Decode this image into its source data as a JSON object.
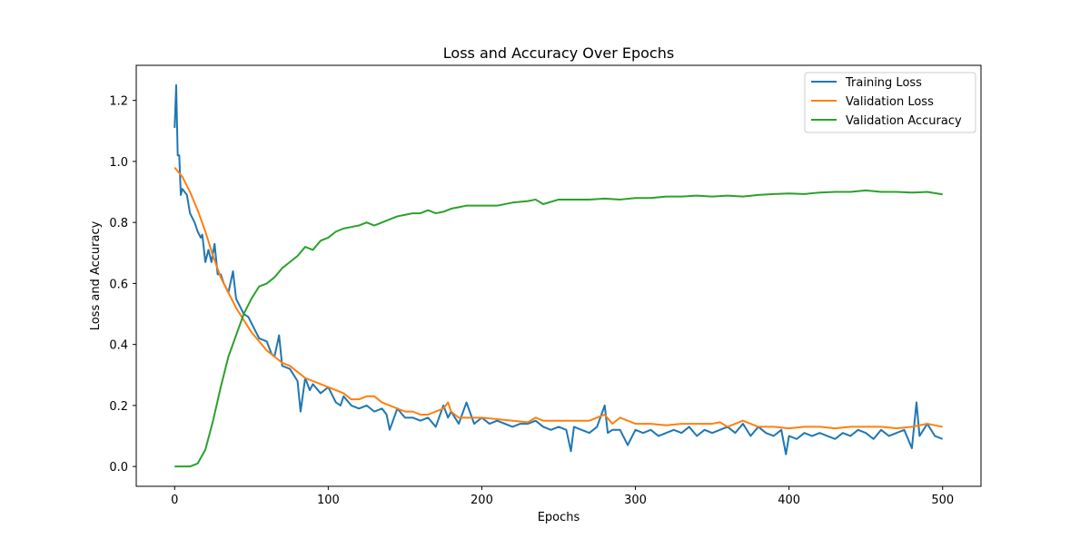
{
  "chart_data": {
    "type": "line",
    "title": "Loss and Accuracy Over Epochs",
    "xlabel": "Epochs",
    "ylabel": "Loss and Accuracy",
    "xlim": [
      -25,
      525
    ],
    "ylim": [
      -0.065,
      1.315
    ],
    "x_ticks": [
      0,
      100,
      200,
      300,
      400,
      500
    ],
    "y_ticks": [
      0.0,
      0.2,
      0.4,
      0.6,
      0.8,
      1.0,
      1.2
    ],
    "x_tick_labels": [
      "0",
      "100",
      "200",
      "300",
      "400",
      "500"
    ],
    "y_tick_labels": [
      "0.0",
      "0.2",
      "0.4",
      "0.6",
      "0.8",
      "1.0",
      "1.2"
    ],
    "grid": false,
    "legend_position": "top-right",
    "series": [
      {
        "name": "Training Loss",
        "color": "#1f77b4",
        "x": [
          0,
          1,
          2,
          3,
          4,
          5,
          8,
          10,
          13,
          15,
          17,
          18,
          20,
          22,
          24,
          26,
          28,
          30,
          32,
          35,
          38,
          40,
          42,
          45,
          48,
          50,
          55,
          60,
          63,
          65,
          68,
          70,
          75,
          80,
          82,
          85,
          88,
          90,
          95,
          100,
          105,
          108,
          110,
          115,
          120,
          125,
          130,
          135,
          138,
          140,
          145,
          150,
          155,
          160,
          165,
          170,
          175,
          178,
          180,
          185,
          190,
          195,
          200,
          205,
          210,
          215,
          220,
          225,
          230,
          235,
          240,
          245,
          250,
          255,
          258,
          260,
          265,
          270,
          275,
          280,
          282,
          285,
          290,
          295,
          300,
          305,
          310,
          315,
          320,
          325,
          330,
          335,
          340,
          345,
          350,
          355,
          360,
          365,
          370,
          375,
          380,
          385,
          390,
          395,
          398,
          400,
          405,
          410,
          415,
          420,
          425,
          430,
          435,
          440,
          445,
          450,
          455,
          460,
          465,
          470,
          475,
          480,
          483,
          485,
          490,
          495,
          500
        ],
        "values": [
          1.11,
          1.25,
          1.02,
          1.02,
          0.89,
          0.91,
          0.89,
          0.83,
          0.8,
          0.77,
          0.75,
          0.76,
          0.67,
          0.71,
          0.67,
          0.73,
          0.63,
          0.63,
          0.6,
          0.57,
          0.64,
          0.55,
          0.53,
          0.5,
          0.49,
          0.47,
          0.42,
          0.41,
          0.37,
          0.36,
          0.43,
          0.33,
          0.32,
          0.28,
          0.18,
          0.29,
          0.25,
          0.27,
          0.24,
          0.26,
          0.21,
          0.2,
          0.23,
          0.2,
          0.19,
          0.2,
          0.18,
          0.19,
          0.17,
          0.12,
          0.19,
          0.16,
          0.16,
          0.15,
          0.16,
          0.13,
          0.2,
          0.16,
          0.18,
          0.14,
          0.21,
          0.14,
          0.16,
          0.14,
          0.15,
          0.14,
          0.13,
          0.14,
          0.14,
          0.15,
          0.13,
          0.12,
          0.13,
          0.12,
          0.05,
          0.13,
          0.12,
          0.11,
          0.13,
          0.2,
          0.11,
          0.12,
          0.12,
          0.07,
          0.12,
          0.11,
          0.12,
          0.1,
          0.11,
          0.12,
          0.11,
          0.13,
          0.1,
          0.12,
          0.11,
          0.12,
          0.13,
          0.11,
          0.14,
          0.1,
          0.13,
          0.11,
          0.1,
          0.12,
          0.04,
          0.1,
          0.09,
          0.11,
          0.1,
          0.11,
          0.1,
          0.09,
          0.11,
          0.1,
          0.12,
          0.11,
          0.09,
          0.12,
          0.1,
          0.11,
          0.12,
          0.06,
          0.21,
          0.1,
          0.14,
          0.1,
          0.09
        ]
      },
      {
        "name": "Validation Loss",
        "color": "#ff7f0e",
        "x": [
          0,
          5,
          10,
          15,
          20,
          25,
          30,
          35,
          40,
          45,
          50,
          55,
          60,
          65,
          70,
          75,
          80,
          85,
          90,
          95,
          100,
          105,
          110,
          115,
          120,
          125,
          130,
          135,
          140,
          145,
          150,
          155,
          160,
          165,
          170,
          175,
          178,
          180,
          185,
          190,
          200,
          210,
          220,
          230,
          235,
          240,
          250,
          260,
          270,
          275,
          280,
          285,
          290,
          300,
          310,
          320,
          330,
          340,
          350,
          355,
          360,
          365,
          370,
          380,
          390,
          400,
          410,
          420,
          430,
          440,
          450,
          460,
          470,
          480,
          490,
          500
        ],
        "values": [
          0.98,
          0.95,
          0.9,
          0.84,
          0.77,
          0.69,
          0.62,
          0.57,
          0.52,
          0.48,
          0.44,
          0.41,
          0.38,
          0.36,
          0.34,
          0.33,
          0.31,
          0.29,
          0.28,
          0.27,
          0.26,
          0.25,
          0.24,
          0.22,
          0.22,
          0.23,
          0.23,
          0.21,
          0.2,
          0.19,
          0.18,
          0.18,
          0.17,
          0.17,
          0.18,
          0.19,
          0.21,
          0.18,
          0.16,
          0.16,
          0.16,
          0.155,
          0.15,
          0.145,
          0.16,
          0.15,
          0.15,
          0.15,
          0.15,
          0.16,
          0.17,
          0.14,
          0.16,
          0.14,
          0.14,
          0.135,
          0.14,
          0.14,
          0.14,
          0.145,
          0.13,
          0.14,
          0.15,
          0.13,
          0.13,
          0.125,
          0.13,
          0.13,
          0.125,
          0.13,
          0.13,
          0.13,
          0.125,
          0.13,
          0.14,
          0.13
        ]
      },
      {
        "name": "Validation Accuracy",
        "color": "#2ca02c",
        "x": [
          0,
          5,
          10,
          15,
          20,
          25,
          30,
          35,
          40,
          45,
          50,
          55,
          60,
          65,
          70,
          75,
          80,
          85,
          90,
          95,
          100,
          105,
          110,
          115,
          120,
          125,
          130,
          135,
          140,
          145,
          150,
          155,
          160,
          165,
          170,
          175,
          180,
          185,
          190,
          200,
          210,
          220,
          230,
          235,
          240,
          250,
          260,
          270,
          280,
          290,
          300,
          310,
          320,
          330,
          340,
          350,
          360,
          370,
          380,
          390,
          400,
          410,
          420,
          430,
          440,
          450,
          460,
          470,
          480,
          490,
          500
        ],
        "values": [
          0.0,
          0.0,
          0.0,
          0.01,
          0.055,
          0.15,
          0.26,
          0.36,
          0.43,
          0.5,
          0.55,
          0.59,
          0.6,
          0.62,
          0.65,
          0.67,
          0.69,
          0.72,
          0.71,
          0.74,
          0.75,
          0.77,
          0.78,
          0.785,
          0.79,
          0.8,
          0.79,
          0.8,
          0.81,
          0.82,
          0.825,
          0.83,
          0.83,
          0.84,
          0.83,
          0.835,
          0.845,
          0.85,
          0.855,
          0.855,
          0.855,
          0.865,
          0.87,
          0.875,
          0.86,
          0.875,
          0.875,
          0.875,
          0.878,
          0.875,
          0.88,
          0.88,
          0.885,
          0.885,
          0.888,
          0.885,
          0.888,
          0.885,
          0.89,
          0.893,
          0.895,
          0.893,
          0.898,
          0.9,
          0.9,
          0.905,
          0.9,
          0.9,
          0.898,
          0.9,
          0.892
        ]
      }
    ]
  }
}
